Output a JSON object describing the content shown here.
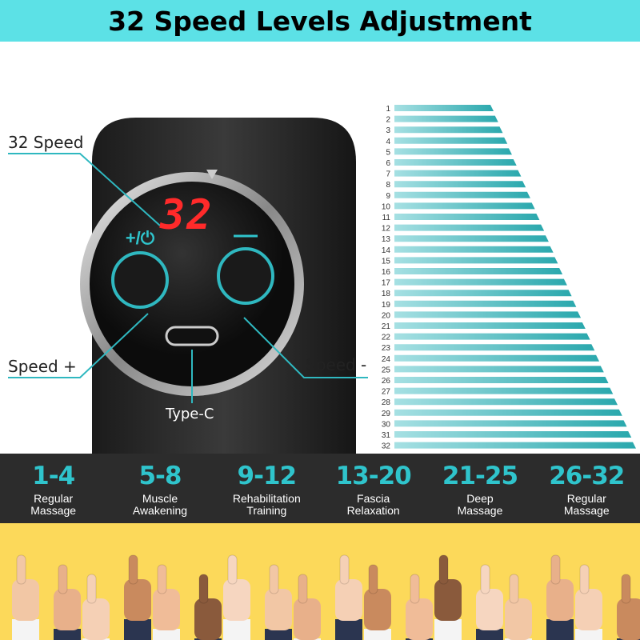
{
  "title": "32 Speed Levels Adjustment",
  "device": {
    "display_value": "32",
    "plus_button_icon": "+/⏻",
    "minus_button_icon": "—",
    "callouts": {
      "speed_count": "32 Speed",
      "speed_plus": "Speed +",
      "speed_minus": "Speed -",
      "port": "Type-C"
    }
  },
  "speed_levels": {
    "labels": [
      "1",
      "2",
      "3",
      "4",
      "5",
      "6",
      "7",
      "8",
      "9",
      "10",
      "11",
      "12",
      "13",
      "14",
      "15",
      "16",
      "17",
      "18",
      "19",
      "20",
      "21",
      "22",
      "23",
      "24",
      "25",
      "26",
      "27",
      "28",
      "29",
      "30",
      "31",
      "32"
    ],
    "bar_color": "#2aa8ad"
  },
  "modes": [
    {
      "range": "1-4",
      "label": "Regular\nMassage"
    },
    {
      "range": "5-8",
      "label": "Muscle\nAwakening"
    },
    {
      "range": "9-12",
      "label": "Rehabilitation\nTraining"
    },
    {
      "range": "13-20",
      "label": "Fascia\nRelaxation"
    },
    {
      "range": "21-25",
      "label": "Deep\nMassage"
    },
    {
      "range": "26-32",
      "label": "Regular\nMassage"
    }
  ],
  "colors": {
    "banner": "#5ce1e6",
    "accent": "#2fc4cc",
    "band": "#2c2c2c",
    "crowd_bg": "#fcd95a",
    "display_red": "#ff2a2a"
  }
}
